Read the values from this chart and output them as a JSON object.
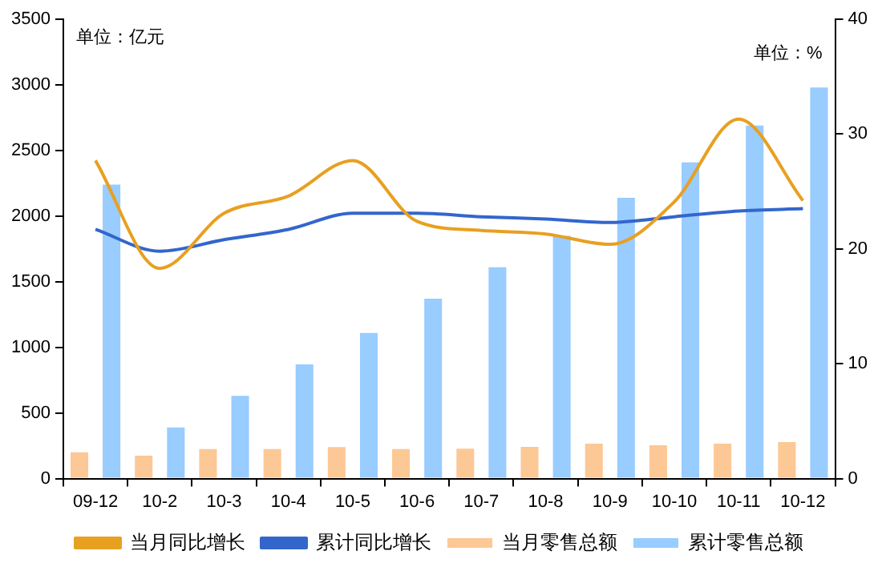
{
  "chart_data": {
    "type": "bar",
    "categories": [
      "09-12",
      "10-2",
      "10-3",
      "10-4",
      "10-5",
      "10-6",
      "10-7",
      "10-8",
      "10-9",
      "10-10",
      "10-11",
      "10-12"
    ],
    "series": [
      {
        "name": "当月零售总额",
        "color": "#fcc896",
        "values": [
          200,
          175,
          225,
          225,
          240,
          225,
          228,
          241,
          266,
          254,
          266,
          279
        ]
      },
      {
        "name": "累计零售总额",
        "color": "#99ccff",
        "values": [
          2240,
          390,
          630,
          870,
          1110,
          1370,
          1610,
          1850,
          2140,
          2410,
          2690,
          2980
        ]
      },
      {
        "name": "当月同比增长",
        "type": "line",
        "axis": "y2",
        "color": "#e8a020",
        "values": [
          27.7,
          18.3,
          23.1,
          24.6,
          27.7,
          22.4,
          21.6,
          21.3,
          20.4,
          24.1,
          31.3,
          24.2
        ]
      },
      {
        "name": "累计同比增长",
        "type": "line",
        "axis": "y2",
        "color": "#3366cc",
        "values": [
          21.7,
          19.8,
          20.8,
          21.7,
          23.1,
          23.1,
          22.8,
          22.6,
          22.3,
          22.8,
          23.3,
          23.5
        ]
      }
    ],
    "ylim": [
      0,
      3500
    ],
    "yticks": [
      0,
      500,
      1000,
      1500,
      2000,
      2500,
      3000,
      3500
    ],
    "y2lim": [
      0,
      40
    ],
    "y2ticks": [
      0,
      10,
      20,
      30,
      40
    ],
    "annotations": [
      "单位：亿元",
      "单位：%"
    ],
    "grid": false,
    "legend": "bottom",
    "marker": "none"
  }
}
